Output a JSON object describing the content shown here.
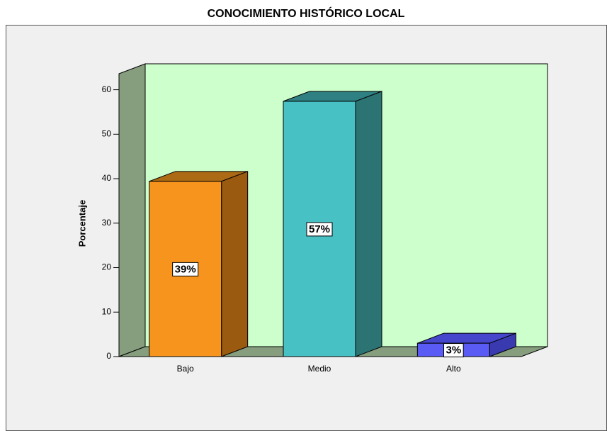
{
  "chart_data": {
    "type": "bar3d",
    "title": "CONOCIMIENTO HISTÓRICO LOCAL",
    "y_label": "Porcentaje",
    "categories": [
      "Bajo",
      "Medio",
      "Alto"
    ],
    "values": [
      39.4,
      57.4,
      3.0
    ],
    "value_labels": [
      "39%",
      "57%",
      "3%"
    ],
    "colors": [
      "#f7941d",
      "#48c1c4",
      "#5a5af5"
    ],
    "side_colors": [
      "#9a5a10",
      "#2c7474",
      "#3a3ab0"
    ],
    "top_colors": [
      "#ad6a14",
      "#2f8082",
      "#4646cc"
    ],
    "ylim": [
      0,
      63.6
    ],
    "yticks": [
      0,
      10,
      20,
      30,
      40,
      50,
      60
    ]
  }
}
